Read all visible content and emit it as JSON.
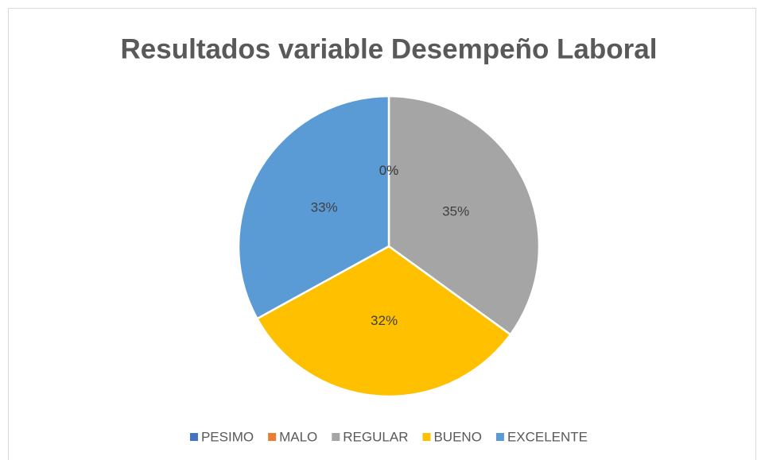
{
  "chart_data": {
    "type": "pie",
    "title": "Resultados variable Desempeño Laboral",
    "categories": [
      "PESIMO",
      "MALO",
      "REGULAR",
      "BUENO",
      "EXCELENTE"
    ],
    "values": [
      0,
      0,
      35,
      32,
      33
    ],
    "value_labels": [
      "0%",
      "0%",
      "35%",
      "32%",
      "33%"
    ],
    "colors": [
      "#4472c4",
      "#ed7d31",
      "#a5a5a5",
      "#ffc000",
      "#5b9bd5"
    ],
    "legend": "bottom"
  }
}
